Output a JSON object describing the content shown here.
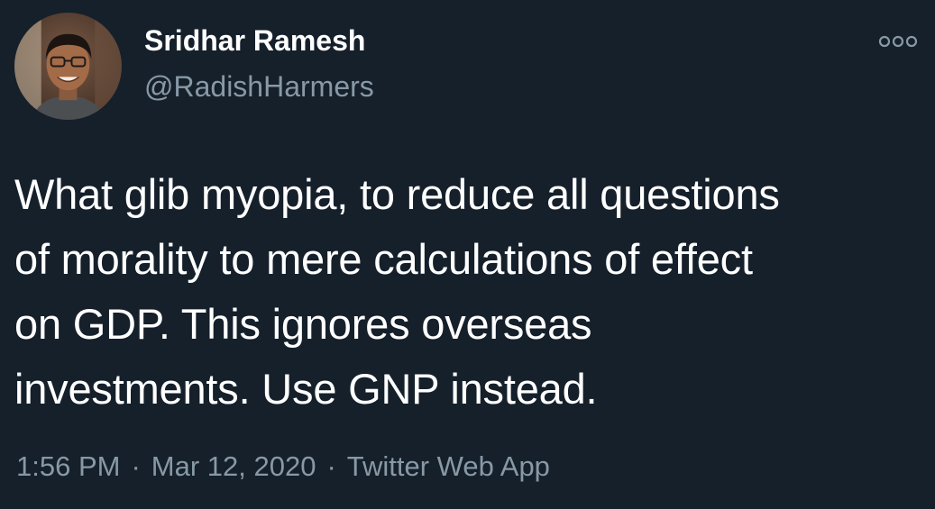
{
  "theme": {
    "background": "#15202b",
    "primary_text": "#ffffff",
    "secondary_text": "#8899a6"
  },
  "author": {
    "display_name": "Sridhar Ramesh",
    "handle": "@RadishHarmers",
    "avatar_icon": "profile-photo"
  },
  "actions": {
    "more_icon": "more-options-icon"
  },
  "tweet": {
    "text": "What glib myopia, to reduce all questions\nof morality to mere calculations of effect\non GDP. This ignores overseas\ninvestments. Use GNP instead."
  },
  "meta": {
    "time": "1:56 PM",
    "separator": "·",
    "date": "Mar 12, 2020",
    "source": "Twitter Web App"
  }
}
